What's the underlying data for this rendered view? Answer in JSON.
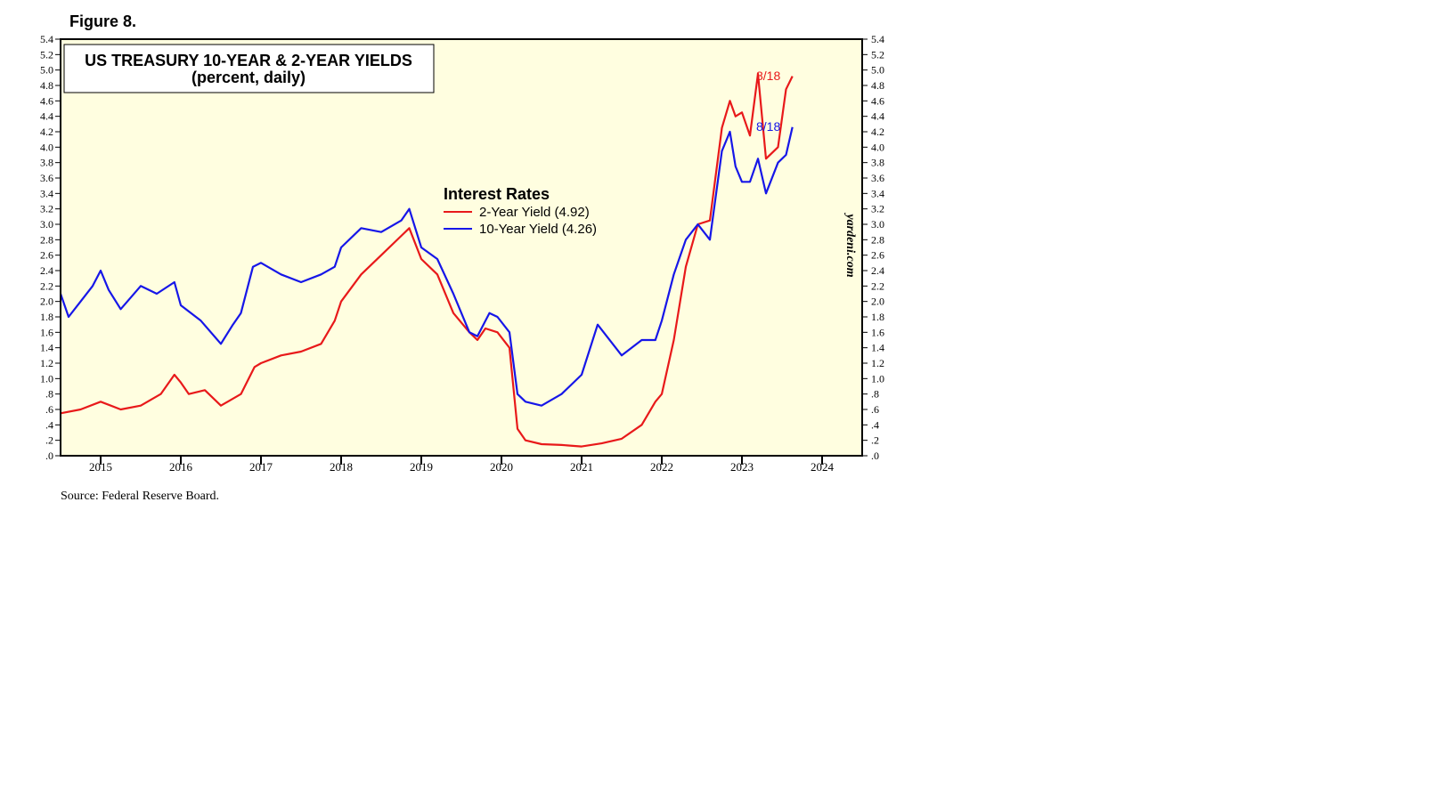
{
  "figure_label": "Figure 8.",
  "source": "Source: Federal Reserve Board.",
  "watermark": "yardeni.com",
  "chart_data": {
    "type": "line",
    "title": "US TREASURY 10-YEAR & 2-YEAR YIELDS",
    "subtitle": "(percent, daily)",
    "legend_title": "Interest Rates",
    "legend_position": "center",
    "x_tick_labels": [
      "2015",
      "2016",
      "2017",
      "2018",
      "2019",
      "2020",
      "2021",
      "2022",
      "2023",
      "2024"
    ],
    "xlim": [
      2014.5,
      2024.5
    ],
    "y_tick_labels": [
      ".0",
      ".2",
      ".4",
      ".6",
      ".8",
      "1.0",
      "1.2",
      "1.4",
      "1.6",
      "1.8",
      "2.0",
      "2.2",
      "2.4",
      "2.6",
      "2.8",
      "3.0",
      "3.2",
      "3.4",
      "3.6",
      "3.8",
      "4.0",
      "4.2",
      "4.4",
      "4.6",
      "4.8",
      "5.0",
      "5.2",
      "5.4"
    ],
    "ylim": [
      0,
      5.4
    ],
    "background_color": "#FFFEE0",
    "series": [
      {
        "name": "2-Year Yield (4.92)",
        "color": "#E8191A",
        "end_label": "8/18",
        "x": [
          2014.5,
          2014.75,
          2015.0,
          2015.25,
          2015.5,
          2015.75,
          2015.92,
          2016.0,
          2016.1,
          2016.3,
          2016.5,
          2016.75,
          2016.92,
          2017.0,
          2017.25,
          2017.5,
          2017.75,
          2017.92,
          2018.0,
          2018.25,
          2018.5,
          2018.75,
          2018.85,
          2019.0,
          2019.2,
          2019.4,
          2019.6,
          2019.7,
          2019.8,
          2019.95,
          2020.1,
          2020.2,
          2020.3,
          2020.5,
          2020.75,
          2021.0,
          2021.25,
          2021.5,
          2021.75,
          2021.92,
          2022.0,
          2022.15,
          2022.3,
          2022.45,
          2022.6,
          2022.75,
          2022.85,
          2022.92,
          2023.0,
          2023.1,
          2023.2,
          2023.3,
          2023.45,
          2023.55,
          2023.63
        ],
        "y": [
          0.55,
          0.6,
          0.7,
          0.6,
          0.65,
          0.8,
          1.05,
          0.95,
          0.8,
          0.85,
          0.65,
          0.8,
          1.15,
          1.2,
          1.3,
          1.35,
          1.45,
          1.75,
          2.0,
          2.35,
          2.6,
          2.85,
          2.95,
          2.55,
          2.35,
          1.85,
          1.6,
          1.5,
          1.65,
          1.6,
          1.4,
          0.35,
          0.2,
          0.15,
          0.14,
          0.12,
          0.16,
          0.22,
          0.4,
          0.7,
          0.8,
          1.5,
          2.45,
          3.0,
          3.05,
          4.25,
          4.6,
          4.4,
          4.45,
          4.15,
          4.95,
          3.85,
          4.0,
          4.75,
          4.92
        ]
      },
      {
        "name": "10-Year Yield (4.26)",
        "color": "#1616E8",
        "end_label": "8/18",
        "x": [
          2014.5,
          2014.6,
          2014.75,
          2014.9,
          2015.0,
          2015.1,
          2015.25,
          2015.5,
          2015.7,
          2015.92,
          2016.0,
          2016.25,
          2016.5,
          2016.65,
          2016.75,
          2016.9,
          2017.0,
          2017.25,
          2017.5,
          2017.75,
          2017.92,
          2018.0,
          2018.25,
          2018.5,
          2018.75,
          2018.85,
          2019.0,
          2019.2,
          2019.4,
          2019.6,
          2019.7,
          2019.85,
          2019.95,
          2020.1,
          2020.2,
          2020.3,
          2020.5,
          2020.75,
          2021.0,
          2021.2,
          2021.5,
          2021.75,
          2021.92,
          2022.0,
          2022.15,
          2022.3,
          2022.45,
          2022.6,
          2022.75,
          2022.85,
          2022.92,
          2023.0,
          2023.1,
          2023.2,
          2023.3,
          2023.45,
          2023.55,
          2023.63
        ],
        "y": [
          2.1,
          1.8,
          2.0,
          2.2,
          2.4,
          2.15,
          1.9,
          2.2,
          2.1,
          2.25,
          1.95,
          1.75,
          1.45,
          1.7,
          1.85,
          2.45,
          2.5,
          2.35,
          2.25,
          2.35,
          2.45,
          2.7,
          2.95,
          2.9,
          3.05,
          3.2,
          2.7,
          2.55,
          2.1,
          1.6,
          1.55,
          1.85,
          1.8,
          1.6,
          0.8,
          0.7,
          0.65,
          0.8,
          1.05,
          1.7,
          1.3,
          1.5,
          1.5,
          1.75,
          2.35,
          2.8,
          3.0,
          2.8,
          3.95,
          4.2,
          3.75,
          3.55,
          3.55,
          3.85,
          3.4,
          3.8,
          3.9,
          4.26
        ]
      }
    ]
  }
}
